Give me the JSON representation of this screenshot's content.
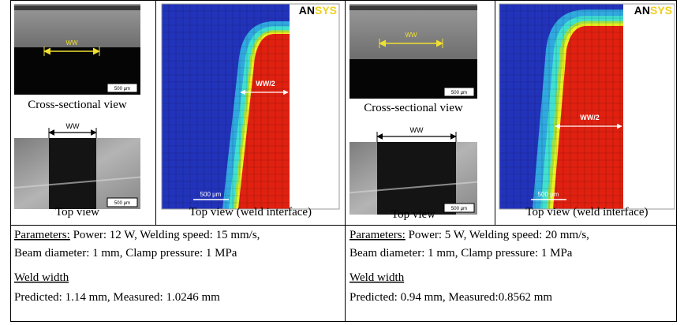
{
  "panels": [
    {
      "cross_section": {
        "label": "WW",
        "scale": "500 μm",
        "caption": "Cross-sectional view"
      },
      "top_view": {
        "label": "WW",
        "scale": "500 μm",
        "caption": "Top view"
      },
      "simulation": {
        "logo_a": "AN",
        "logo_b": "SYS",
        "label": "WW/2",
        "scale": "500 μm",
        "caption": "Top view (weld interface)"
      },
      "parameters": {
        "heading": "Parameters:",
        "line1": " Power: 12 W, Welding speed: 15 mm/s,",
        "line2": "Beam diameter: 1 mm, Clamp pressure: 1 MPa"
      },
      "weld_width": {
        "heading": "Weld width",
        "text": "Predicted: 1.14 mm, Measured: 1.0246 mm"
      }
    },
    {
      "cross_section": {
        "label": "WW",
        "scale": "500 μm",
        "caption": "Cross-sectional view"
      },
      "top_view": {
        "label": "WW",
        "scale": "500 μm",
        "caption": "Top view"
      },
      "simulation": {
        "logo_a": "AN",
        "logo_b": "SYS",
        "label": "WW/2",
        "scale": "500 μm",
        "caption": "Top view (weld interface)"
      },
      "parameters": {
        "heading": "Parameters:",
        "line1": " Power: 5 W, Welding speed: 20 mm/s,",
        "line2": "Beam diameter: 1 mm, Clamp pressure: 1 MPa"
      },
      "weld_width": {
        "heading": "Weld width",
        "text": "Predicted: 0.94 mm, Measured:0.8562 mm"
      }
    }
  ]
}
